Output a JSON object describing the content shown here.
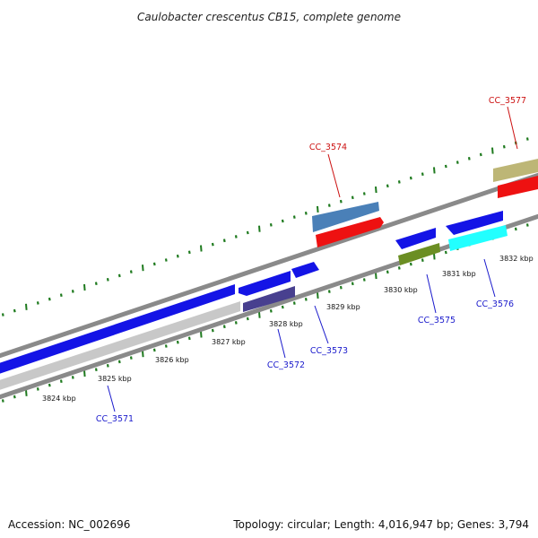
{
  "title": "Caulobacter crescentus CB15, complete genome",
  "footer": {
    "accession": "Accession: NC_002696",
    "topology": "Topology: circular; Length: 4,016,947 bp; Genes: 3,794"
  },
  "colors": {
    "backbone": "#8a8a8a",
    "tick": "#1e7a1e",
    "label_blue": "#1a1acc",
    "label_red": "#cc1111"
  },
  "ticks": [
    "3824 kbp",
    "3825 kbp",
    "3826 kbp",
    "3827 kbp",
    "3828 kbp",
    "3829 kbp",
    "3830 kbp",
    "3831 kbp",
    "3832 kbp"
  ],
  "labels": [
    {
      "id": "CC_3571",
      "text": "CC_3571",
      "color": "#1a1acc"
    },
    {
      "id": "CC_3572",
      "text": "CC_3572",
      "color": "#1a1acc"
    },
    {
      "id": "CC_3573",
      "text": "CC_3573",
      "color": "#1a1acc"
    },
    {
      "id": "CC_3574",
      "text": "CC_3574",
      "color": "#cc1111"
    },
    {
      "id": "CC_3575",
      "text": "CC_3575",
      "color": "#1a1acc"
    },
    {
      "id": "CC_3576",
      "text": "CC_3576",
      "color": "#1a1acc"
    },
    {
      "id": "CC_3577",
      "text": "CC_3577",
      "color": "#cc1111"
    }
  ]
}
